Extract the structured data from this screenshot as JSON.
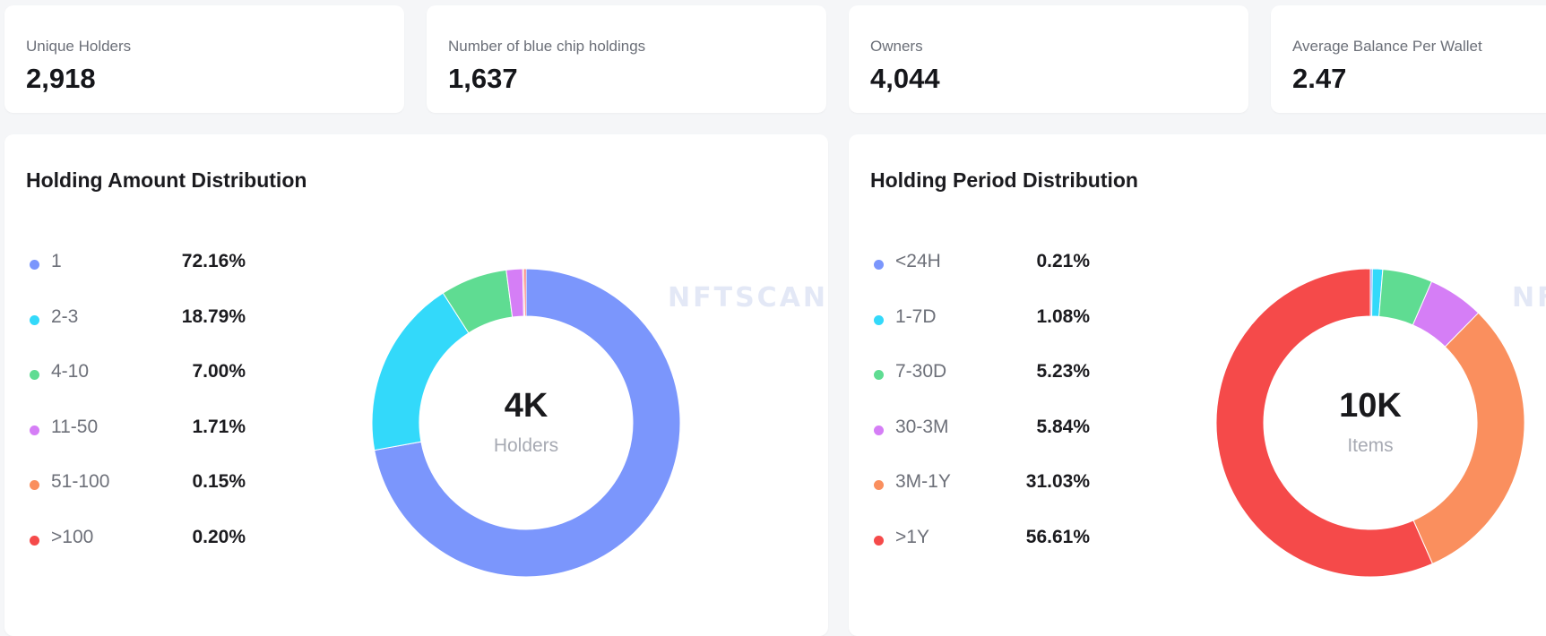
{
  "stats": [
    {
      "label": "Unique Holders",
      "value": "2,918"
    },
    {
      "label": "Number of blue chip holdings",
      "value": "1,637"
    },
    {
      "label": "Owners",
      "value": "4,044"
    },
    {
      "label": "Average Balance Per Wallet",
      "value": "2.47"
    }
  ],
  "watermark": "NFTSCAN",
  "chart_data": [
    {
      "type": "pie",
      "title": "Holding Amount Distribution",
      "center_value": "4K",
      "center_label": "Holders",
      "categories": [
        "1",
        "2-3",
        "4-10",
        "11-50",
        "51-100",
        ">100"
      ],
      "values": [
        72.16,
        18.79,
        7.0,
        1.71,
        0.15,
        0.2
      ],
      "value_labels": [
        "72.16%",
        "18.79%",
        "7.00%",
        "1.71%",
        "0.15%",
        "0.20%"
      ],
      "colors": [
        "#7b96fc",
        "#33d9fa",
        "#5fdc92",
        "#d57ef6",
        "#fa8f5e",
        "#f54a4a"
      ]
    },
    {
      "type": "pie",
      "title": "Holding Period Distribution",
      "center_value": "10K",
      "center_label": "Items",
      "categories": [
        "<24H",
        "1-7D",
        "7-30D",
        "30-3M",
        "3M-1Y",
        ">1Y"
      ],
      "values": [
        0.21,
        1.08,
        5.23,
        5.84,
        31.03,
        56.61
      ],
      "value_labels": [
        "0.21%",
        "1.08%",
        "5.23%",
        "5.84%",
        "31.03%",
        "56.61%"
      ],
      "colors": [
        "#7b96fc",
        "#33d9fa",
        "#5fdc92",
        "#d57ef6",
        "#fa8f5e",
        "#f54a4a"
      ]
    }
  ]
}
